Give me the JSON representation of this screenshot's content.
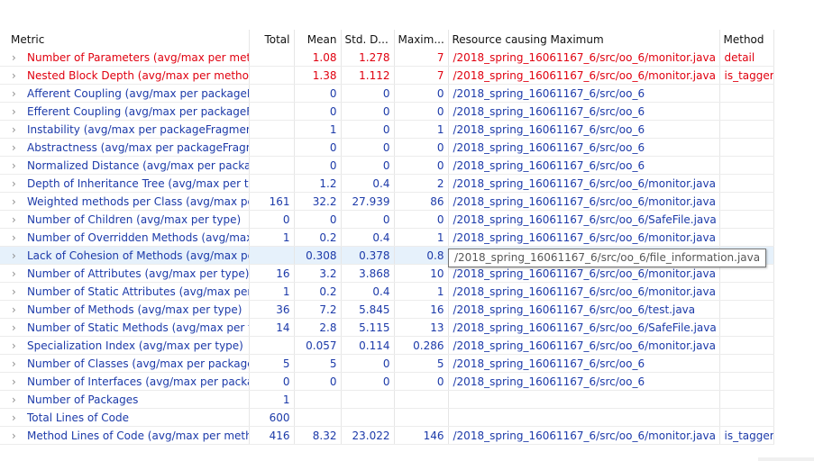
{
  "columns": {
    "metric": "Metric",
    "total": "Total",
    "mean": "Mean",
    "std_dev": "Std. D...",
    "maximum": "Maxim...",
    "resource": "Resource causing Maximum",
    "method": "Method"
  },
  "colors": {
    "in_range": "#1c3aa9",
    "out_of_range": "#e0000f",
    "selection": "#e6f1fb"
  },
  "rows": [
    {
      "metric": "Number of Parameters (avg/max per meth",
      "total": "",
      "mean": "1.08",
      "std_dev": "1.278",
      "maximum": "7",
      "resource": "/2018_spring_16061167_6/src/oo_6/monitor.java",
      "method": "detail",
      "status": "red"
    },
    {
      "metric": "Nested Block Depth (avg/max per methoc",
      "total": "",
      "mean": "1.38",
      "std_dev": "1.112",
      "maximum": "7",
      "resource": "/2018_spring_16061167_6/src/oo_6/monitor.java",
      "method": "is_tagger",
      "status": "red"
    },
    {
      "metric": "Afferent Coupling (avg/max per packageF",
      "total": "",
      "mean": "0",
      "std_dev": "0",
      "maximum": "0",
      "resource": "/2018_spring_16061167_6/src/oo_6",
      "method": "",
      "status": "blue"
    },
    {
      "metric": "Efferent Coupling (avg/max per packageFı",
      "total": "",
      "mean": "0",
      "std_dev": "0",
      "maximum": "0",
      "resource": "/2018_spring_16061167_6/src/oo_6",
      "method": "",
      "status": "blue"
    },
    {
      "metric": "Instability (avg/max per packageFragment",
      "total": "",
      "mean": "1",
      "std_dev": "0",
      "maximum": "1",
      "resource": "/2018_spring_16061167_6/src/oo_6",
      "method": "",
      "status": "blue"
    },
    {
      "metric": "Abstractness (avg/max per packageFragm",
      "total": "",
      "mean": "0",
      "std_dev": "0",
      "maximum": "0",
      "resource": "/2018_spring_16061167_6/src/oo_6",
      "method": "",
      "status": "blue"
    },
    {
      "metric": "Normalized Distance (avg/max per packag",
      "total": "",
      "mean": "0",
      "std_dev": "0",
      "maximum": "0",
      "resource": "/2018_spring_16061167_6/src/oo_6",
      "method": "",
      "status": "blue"
    },
    {
      "metric": "Depth of Inheritance Tree (avg/max per ty",
      "total": "",
      "mean": "1.2",
      "std_dev": "0.4",
      "maximum": "2",
      "resource": "/2018_spring_16061167_6/src/oo_6/monitor.java",
      "method": "",
      "status": "blue"
    },
    {
      "metric": "Weighted methods per Class (avg/max pe",
      "total": "161",
      "mean": "32.2",
      "std_dev": "27.939",
      "maximum": "86",
      "resource": "/2018_spring_16061167_6/src/oo_6/monitor.java",
      "method": "",
      "status": "blue"
    },
    {
      "metric": "Number of Children (avg/max per type)",
      "total": "0",
      "mean": "0",
      "std_dev": "0",
      "maximum": "0",
      "resource": "/2018_spring_16061167_6/src/oo_6/SafeFile.java",
      "method": "",
      "status": "blue"
    },
    {
      "metric": "Number of Overridden Methods (avg/max",
      "total": "1",
      "mean": "0.2",
      "std_dev": "0.4",
      "maximum": "1",
      "resource": "/2018_spring_16061167_6/src/oo_6/monitor.java",
      "method": "",
      "status": "blue"
    },
    {
      "metric": "Lack of Cohesion of Methods (avg/max pe",
      "total": "",
      "mean": "0.308",
      "std_dev": "0.378",
      "maximum": "0.8",
      "resource": "",
      "method": "",
      "status": "blue",
      "selected": true
    },
    {
      "metric": "Number of Attributes (avg/max per type)",
      "total": "16",
      "mean": "3.2",
      "std_dev": "3.868",
      "maximum": "10",
      "resource": "/2018_spring_16061167_6/src/oo_6/monitor.java",
      "method": "",
      "status": "blue"
    },
    {
      "metric": "Number of Static Attributes (avg/max per",
      "total": "1",
      "mean": "0.2",
      "std_dev": "0.4",
      "maximum": "1",
      "resource": "/2018_spring_16061167_6/src/oo_6/monitor.java",
      "method": "",
      "status": "blue"
    },
    {
      "metric": "Number of Methods (avg/max per type)",
      "total": "36",
      "mean": "7.2",
      "std_dev": "5.845",
      "maximum": "16",
      "resource": "/2018_spring_16061167_6/src/oo_6/test.java",
      "method": "",
      "status": "blue"
    },
    {
      "metric": "Number of Static Methods (avg/max per t",
      "total": "14",
      "mean": "2.8",
      "std_dev": "5.115",
      "maximum": "13",
      "resource": "/2018_spring_16061167_6/src/oo_6/SafeFile.java",
      "method": "",
      "status": "blue"
    },
    {
      "metric": "Specialization Index (avg/max per type)",
      "total": "",
      "mean": "0.057",
      "std_dev": "0.114",
      "maximum": "0.286",
      "resource": "/2018_spring_16061167_6/src/oo_6/monitor.java",
      "method": "",
      "status": "blue"
    },
    {
      "metric": "Number of Classes (avg/max per package",
      "total": "5",
      "mean": "5",
      "std_dev": "0",
      "maximum": "5",
      "resource": "/2018_spring_16061167_6/src/oo_6",
      "method": "",
      "status": "blue"
    },
    {
      "metric": "Number of Interfaces (avg/max per packa",
      "total": "0",
      "mean": "0",
      "std_dev": "0",
      "maximum": "0",
      "resource": "/2018_spring_16061167_6/src/oo_6",
      "method": "",
      "status": "blue"
    },
    {
      "metric": "Number of Packages",
      "total": "1",
      "mean": "",
      "std_dev": "",
      "maximum": "",
      "resource": "",
      "method": "",
      "status": "blue"
    },
    {
      "metric": "Total Lines of Code",
      "total": "600",
      "mean": "",
      "std_dev": "",
      "maximum": "",
      "resource": "",
      "method": "",
      "status": "blue"
    },
    {
      "metric": "Method Lines of Code (avg/max per meth",
      "total": "416",
      "mean": "8.32",
      "std_dev": "23.022",
      "maximum": "146",
      "resource": "/2018_spring_16061167_6/src/oo_6/monitor.java",
      "method": "is_tagger",
      "status": "blue"
    }
  ],
  "tooltip": {
    "text": "/2018_spring_16061167_6/src/oo_6/file_information.java"
  },
  "icons": {
    "row_expand": "chevron-right-icon"
  }
}
